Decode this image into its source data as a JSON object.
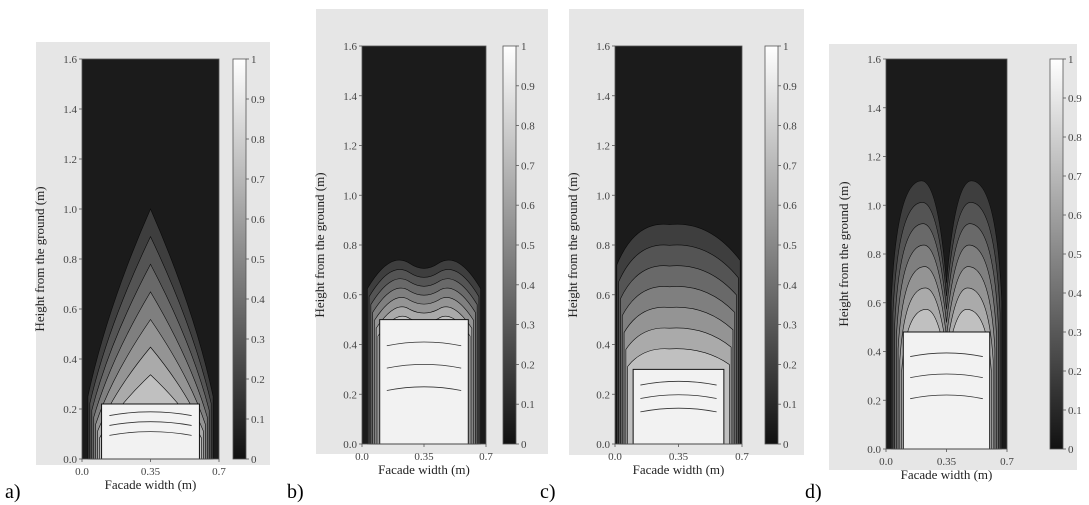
{
  "panels": [
    {
      "label": "a)",
      "xlabel": "Facade width (m)",
      "ylabel": "Height from the ground (m)",
      "xticks": [
        "0.0",
        "0.35",
        "0.7"
      ],
      "yticks": [
        "0.0",
        "0.2",
        "0.4",
        "0.6",
        "0.8",
        "1.0",
        "1.2",
        "1.4",
        "1.6"
      ],
      "cbticks": [
        "0",
        "0.1",
        "0.2",
        "0.3",
        "0.4",
        "0.5",
        "0.6",
        "0.7",
        "0.8",
        "0.9",
        "1"
      ],
      "plume": "single",
      "opening_top": 0.22,
      "plume_top": 1.0
    },
    {
      "label": "b)",
      "xlabel": "Facade width (m)",
      "ylabel": "Height from the ground (m)",
      "xticks": [
        "0.0",
        "0.35",
        "0.7"
      ],
      "yticks": [
        "0.0",
        "0.2",
        "0.4",
        "0.6",
        "0.8",
        "1.0",
        "1.2",
        "1.4",
        "1.6"
      ],
      "cbticks": [
        "0",
        "0.1",
        "0.2",
        "0.3",
        "0.4",
        "0.5",
        "0.6",
        "0.7",
        "0.8",
        "0.9",
        "1"
      ],
      "plume": "flat",
      "opening_top": 0.5,
      "plume_top": 0.78
    },
    {
      "label": "c)",
      "xlabel": "Facade width (m)",
      "ylabel": "Height from the ground (m)",
      "xticks": [
        "0.0",
        "0.35",
        "0.7"
      ],
      "yticks": [
        "0.0",
        "0.2",
        "0.4",
        "0.6",
        "0.8",
        "1.0",
        "1.2",
        "1.4",
        "1.6"
      ],
      "cbticks": [
        "0",
        "0.1",
        "0.2",
        "0.3",
        "0.4",
        "0.5",
        "0.6",
        "0.7",
        "0.8",
        "0.9",
        "1"
      ],
      "plume": "wide",
      "opening_top": 0.3,
      "plume_top": 0.9
    },
    {
      "label": "d)",
      "xlabel": "Facade width (m)",
      "ylabel": "Height from the ground (m)",
      "xticks": [
        "0.0",
        "0.35",
        "0.7"
      ],
      "yticks": [
        "0.0",
        "0.2",
        "0.4",
        "0.6",
        "0.8",
        "1.0",
        "1.2",
        "1.4",
        "1.6"
      ],
      "cbticks": [
        "0",
        "0.1",
        "0.2",
        "0.3",
        "0.4",
        "0.5",
        "0.6",
        "0.7",
        "0.8",
        "0.9",
        "1"
      ],
      "plume": "double",
      "opening_top": 0.48,
      "plume_top": 1.1
    }
  ],
  "chart_data": {
    "type": "heatmap",
    "x_range": [
      0.0,
      0.7
    ],
    "y_range": [
      0.0,
      1.6
    ],
    "colorbar_range": [
      0,
      1
    ],
    "colormap": "grayscale (0 = black, 1 = white)"
  }
}
